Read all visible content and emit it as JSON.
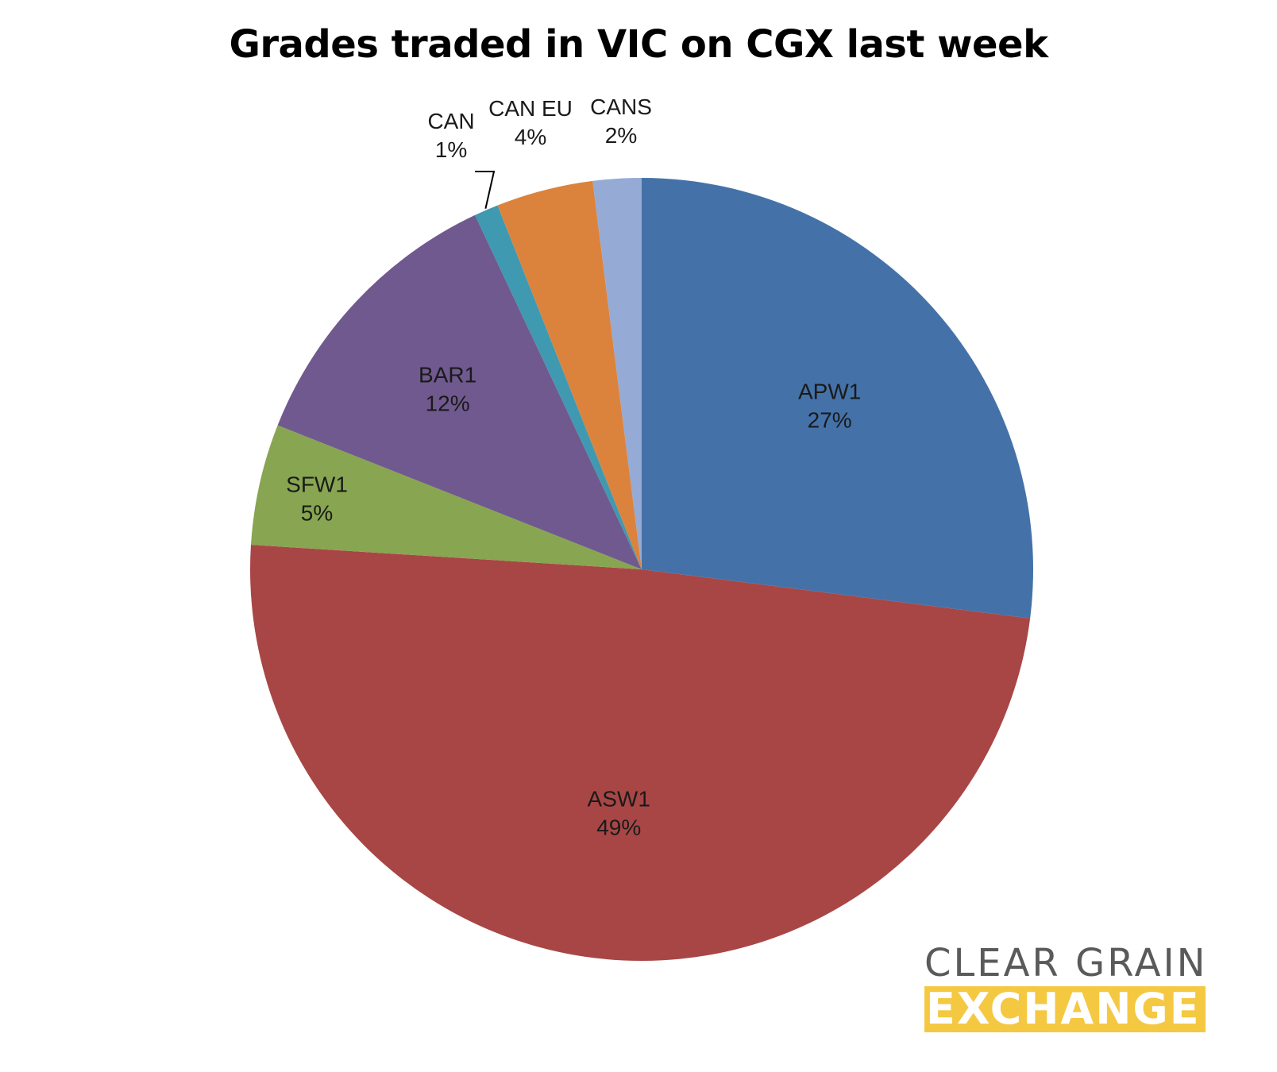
{
  "chart_data": {
    "type": "pie",
    "title": "Grades traded in VIC on CGX last week",
    "start_angle_deg": 0,
    "direction": "clockwise",
    "slices": [
      {
        "label": "APW1",
        "value": 27,
        "display": "27%",
        "color": "#4472a8"
      },
      {
        "label": "ASW1",
        "value": 49,
        "display": "49%",
        "color": "#a84646"
      },
      {
        "label": "SFW1",
        "value": 5,
        "display": "5%",
        "color": "#88a551"
      },
      {
        "label": "BAR1",
        "value": 12,
        "display": "12%",
        "color": "#70598e"
      },
      {
        "label": "CAN",
        "value": 1,
        "display": "1%",
        "color": "#3f99b0"
      },
      {
        "label": "CAN EU",
        "value": 4,
        "display": "4%",
        "color": "#db833c"
      },
      {
        "label": "CANS",
        "value": 2,
        "display": "2%",
        "color": "#95aad4"
      }
    ]
  },
  "logo": {
    "line1": "CLEAR GRAIN",
    "line2": "EXCHANGE"
  }
}
